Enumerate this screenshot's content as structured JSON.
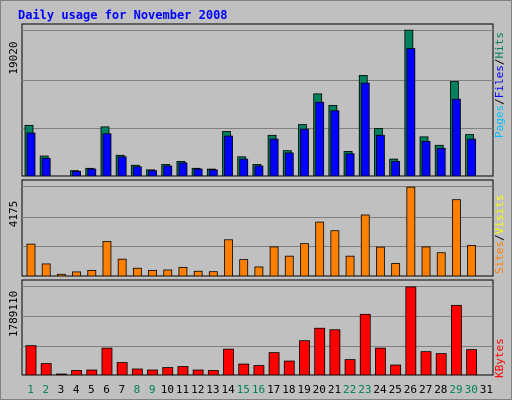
{
  "title": "Daily usage for November 2008",
  "colors": {
    "hits": "#00805c",
    "files": "#0000ff",
    "pages": "#00c0ff",
    "visits": "#ffff00",
    "sites": "#ff8000",
    "kbytes": "#ff0000",
    "title": "#0000ff",
    "weekend_day": "#00805c",
    "weekday": "#000000",
    "separator": "#000000"
  },
  "legend": {
    "top": {
      "pages": "Pages",
      "files": "Files",
      "hits": "Hits",
      "sep": "/"
    },
    "middle": {
      "sites": "Sites",
      "visits": "Visits",
      "sep": "/"
    },
    "bottom": {
      "kbytes": "KBytes"
    }
  },
  "chart_data": {
    "type": "bar",
    "title": "Daily usage for November 2008",
    "categories": [
      "1",
      "2",
      "3",
      "4",
      "5",
      "6",
      "7",
      "8",
      "9",
      "10",
      "11",
      "12",
      "13",
      "14",
      "15",
      "16",
      "17",
      "18",
      "19",
      "20",
      "21",
      "22",
      "23",
      "24",
      "25",
      "26",
      "27",
      "28",
      "29",
      "30",
      "31"
    ],
    "weekend_days": [
      "1",
      "2",
      "8",
      "9",
      "15",
      "16",
      "22",
      "23",
      "29",
      "30"
    ],
    "panels": [
      {
        "name": "top",
        "ymax_label": "19020",
        "ymax": 19020,
        "series": [
          {
            "name": "Hits",
            "values": [
              6600,
              2600,
              0,
              700,
              1000,
              6400,
              2700,
              1400,
              800,
              1500,
              1900,
              1000,
              900,
              5800,
              2500,
              1500,
              5300,
              3300,
              6700,
              10700,
              9200,
              3200,
              13100,
              6200,
              2200,
              19000,
              5100,
              4000,
              12300,
              5400,
              0
            ]
          },
          {
            "name": "Files",
            "values": [
              5600,
              2300,
              0,
              600,
              900,
              5500,
              2500,
              1200,
              700,
              1300,
              1700,
              900,
              800,
              5200,
              2200,
              1300,
              4800,
              3000,
              6100,
              9600,
              8500,
              2900,
              12100,
              5300,
              1900,
              16600,
              4500,
              3600,
              10000,
              4800,
              0
            ]
          },
          {
            "name": "Pages",
            "values": [
              0,
              0,
              0,
              0,
              0,
              0,
              0,
              0,
              0,
              0,
              0,
              0,
              0,
              0,
              0,
              0,
              0,
              0,
              0,
              0,
              0,
              0,
              0,
              0,
              0,
              0,
              0,
              0,
              0,
              0,
              0
            ]
          }
        ]
      },
      {
        "name": "middle",
        "ymax_label": "4175",
        "ymax": 4175,
        "series": [
          {
            "name": "Sites",
            "values": [
              1480,
              560,
              80,
              190,
              260,
              1600,
              780,
              360,
              260,
              280,
              400,
              220,
              200,
              1680,
              760,
              420,
              1350,
              920,
              1500,
              2500,
              2100,
              920,
              2830,
              1340,
              580,
              4120,
              1350,
              1080,
              3540,
              1420,
              0
            ]
          },
          {
            "name": "Visits",
            "values": [
              0,
              0,
              0,
              0,
              0,
              0,
              0,
              0,
              0,
              0,
              0,
              0,
              0,
              0,
              0,
              0,
              0,
              0,
              0,
              0,
              0,
              0,
              0,
              0,
              0,
              0,
              0,
              0,
              0,
              0,
              0
            ]
          }
        ]
      },
      {
        "name": "bottom",
        "ymax_label": "1789110",
        "ymax": 1789110,
        "series": [
          {
            "name": "KBytes",
            "values": [
              590000,
              230000,
              20000,
              90000,
              100000,
              540000,
              250000,
              120000,
              100000,
              150000,
              170000,
              100000,
              90000,
              520000,
              220000,
              190000,
              450000,
              280000,
              690000,
              940000,
              910000,
              310000,
              1220000,
              540000,
              200000,
              1770000,
              470000,
              430000,
              1400000,
              510000,
              0
            ]
          }
        ]
      }
    ]
  }
}
